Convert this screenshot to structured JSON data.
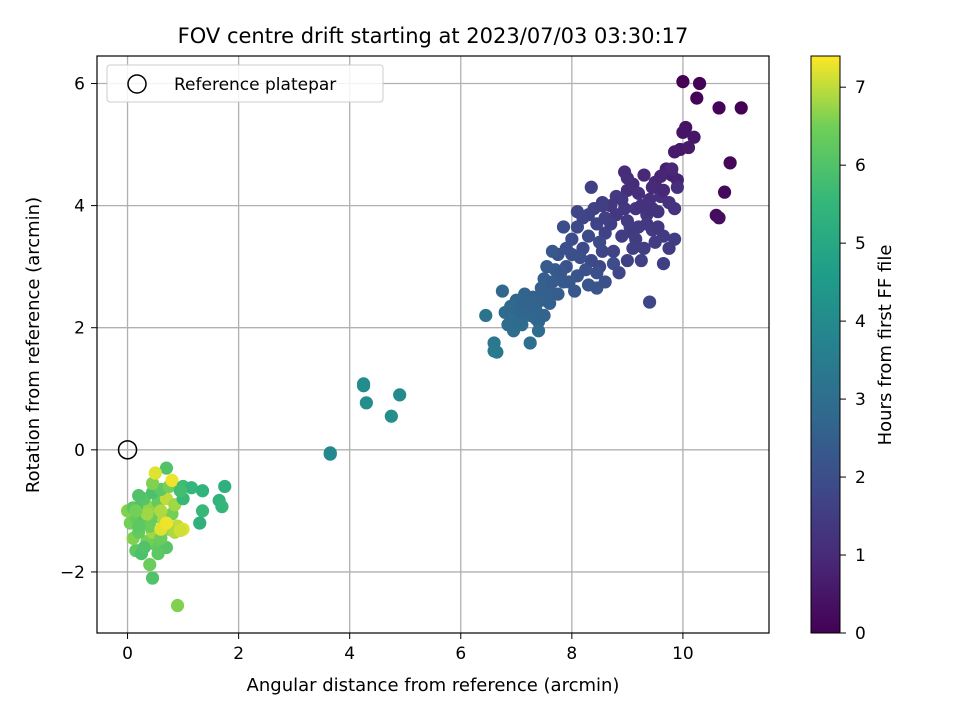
{
  "chart_data": {
    "type": "scatter",
    "title": "FOV centre drift starting at 2023/07/03 03:30:17",
    "xlabel": "Angular distance from reference (arcmin)",
    "ylabel": "Rotation from reference (arcmin)",
    "xlim": [
      -0.55,
      11.55
    ],
    "ylim": [
      -3.0,
      6.45
    ],
    "xticks": [
      0,
      2,
      4,
      6,
      8,
      10
    ],
    "yticks": [
      -2,
      0,
      2,
      4,
      6
    ],
    "grid": true,
    "legend": {
      "placement": "top-left",
      "entries": [
        "Reference platepar"
      ]
    },
    "reference_point": {
      "name": "Reference platepar",
      "x": 0,
      "y": 0
    },
    "colorbar": {
      "label": "Hours from first FF file",
      "range": [
        0,
        7.4
      ],
      "ticks": [
        0,
        1,
        2,
        3,
        4,
        5,
        6,
        7
      ],
      "colormap": "viridis"
    },
    "points": [
      [
        10.0,
        6.03,
        0.02
      ],
      [
        10.3,
        6.0,
        0.05
      ],
      [
        10.25,
        5.76,
        0.1
      ],
      [
        10.65,
        5.6,
        0.08
      ],
      [
        11.05,
        5.6,
        0.03
      ],
      [
        10.85,
        4.7,
        0.15
      ],
      [
        10.75,
        4.22,
        0.2
      ],
      [
        10.6,
        3.84,
        0.25
      ],
      [
        10.65,
        3.8,
        0.3
      ],
      [
        10.05,
        5.28,
        0.4
      ],
      [
        10.0,
        5.2,
        0.45
      ],
      [
        10.2,
        5.12,
        0.5
      ],
      [
        9.95,
        4.92,
        0.55
      ],
      [
        9.85,
        4.88,
        0.6
      ],
      [
        9.7,
        4.6,
        0.7
      ],
      [
        9.8,
        4.5,
        0.75
      ],
      [
        9.9,
        4.42,
        0.8
      ],
      [
        9.6,
        4.48,
        0.85
      ],
      [
        9.5,
        4.38,
        0.9
      ],
      [
        9.3,
        4.5,
        0.95
      ],
      [
        9.1,
        4.35,
        1.0
      ],
      [
        8.95,
        4.55,
        1.05
      ],
      [
        9.0,
        4.25,
        1.1
      ],
      [
        9.2,
        4.2,
        1.12
      ],
      [
        9.4,
        4.1,
        1.15
      ],
      [
        9.6,
        4.15,
        1.18
      ],
      [
        9.75,
        4.05,
        1.2
      ],
      [
        9.85,
        3.95,
        1.22
      ],
      [
        9.55,
        3.9,
        1.25
      ],
      [
        9.35,
        3.85,
        1.28
      ],
      [
        9.15,
        3.95,
        1.3
      ],
      [
        8.9,
        4.1,
        1.32
      ],
      [
        8.7,
        4.0,
        1.35
      ],
      [
        8.8,
        3.85,
        1.38
      ],
      [
        9.0,
        3.75,
        1.4
      ],
      [
        9.2,
        3.65,
        1.42
      ],
      [
        9.45,
        3.6,
        1.45
      ],
      [
        9.65,
        3.5,
        1.47
      ],
      [
        9.85,
        3.45,
        1.5
      ],
      [
        9.5,
        3.4,
        1.52
      ],
      [
        9.3,
        3.3,
        1.55
      ],
      [
        9.1,
        3.3,
        1.57
      ],
      [
        9.25,
        3.1,
        1.6
      ],
      [
        9.0,
        3.1,
        1.62
      ],
      [
        9.65,
        3.05,
        1.58
      ],
      [
        9.4,
        2.42,
        1.75
      ],
      [
        8.75,
        3.25,
        1.7
      ],
      [
        8.5,
        3.0,
        1.8
      ],
      [
        8.85,
        2.9,
        1.78
      ],
      [
        8.6,
        3.55,
        1.65
      ],
      [
        8.45,
        3.7,
        1.68
      ],
      [
        8.3,
        3.85,
        1.72
      ],
      [
        8.1,
        3.9,
        1.78
      ],
      [
        8.35,
        4.3,
        1.6
      ],
      [
        8.9,
        3.5,
        1.5
      ],
      [
        9.1,
        3.55,
        1.45
      ],
      [
        9.45,
        4.3,
        1.0
      ],
      [
        9.65,
        4.25,
        0.95
      ],
      [
        9.0,
        4.45,
        1.1
      ],
      [
        8.55,
        4.05,
        1.5
      ],
      [
        8.7,
        3.7,
        1.55
      ],
      [
        8.55,
        3.25,
        1.75
      ],
      [
        8.35,
        3.1,
        1.85
      ],
      [
        8.2,
        3.3,
        1.9
      ],
      [
        8.0,
        3.45,
        1.95
      ],
      [
        7.85,
        3.65,
        2.0
      ],
      [
        7.75,
        3.2,
        2.1
      ],
      [
        7.9,
        3.0,
        2.15
      ],
      [
        8.1,
        2.85,
        2.2
      ],
      [
        8.3,
        2.7,
        2.25
      ],
      [
        8.05,
        2.6,
        2.3
      ],
      [
        7.85,
        2.75,
        2.35
      ],
      [
        7.7,
        2.95,
        2.4
      ],
      [
        7.5,
        2.8,
        2.5
      ],
      [
        7.6,
        2.6,
        2.55
      ],
      [
        7.45,
        2.45,
        2.6
      ],
      [
        7.3,
        2.35,
        2.65
      ],
      [
        7.15,
        2.55,
        2.7
      ],
      [
        7.0,
        2.45,
        2.75
      ],
      [
        6.8,
        2.25,
        2.85
      ],
      [
        6.95,
        2.15,
        2.9
      ],
      [
        7.1,
        2.05,
        2.95
      ],
      [
        7.25,
        2.2,
        2.8
      ],
      [
        7.4,
        2.1,
        2.7
      ],
      [
        7.0,
        2.3,
        2.75
      ],
      [
        6.85,
        2.05,
        2.95
      ],
      [
        6.75,
        2.6,
        2.8
      ],
      [
        6.45,
        2.2,
        3.2
      ],
      [
        7.4,
        1.95,
        2.9
      ],
      [
        7.25,
        1.75,
        3.0
      ],
      [
        7.35,
        2.3,
        2.7
      ],
      [
        7.55,
        2.55,
        2.55
      ],
      [
        7.55,
        3.0,
        2.4
      ],
      [
        7.65,
        3.25,
        2.3
      ],
      [
        6.6,
        1.75,
        3.3
      ],
      [
        6.65,
        1.6,
        3.35
      ],
      [
        6.6,
        1.62,
        3.4
      ],
      [
        8.45,
        2.65,
        2.2
      ],
      [
        8.6,
        2.75,
        2.1
      ],
      [
        8.75,
        3.05,
        1.95
      ],
      [
        8.45,
        2.9,
        2.05
      ],
      [
        8.25,
        2.95,
        2.1
      ],
      [
        8.15,
        3.15,
        2.05
      ],
      [
        8.0,
        3.2,
        2.05
      ],
      [
        8.3,
        3.5,
        1.9
      ],
      [
        8.5,
        3.4,
        1.85
      ],
      [
        8.1,
        3.65,
        1.85
      ],
      [
        7.9,
        3.3,
        2.05
      ],
      [
        8.4,
        3.95,
        1.65
      ],
      [
        8.6,
        3.8,
        1.6
      ],
      [
        8.55,
        4.0,
        1.55
      ],
      [
        8.8,
        4.15,
        1.4
      ],
      [
        8.95,
        3.95,
        1.35
      ],
      [
        9.05,
        3.65,
        1.45
      ],
      [
        9.35,
        3.7,
        1.4
      ],
      [
        9.15,
        3.45,
        1.5
      ],
      [
        9.55,
        3.65,
        1.35
      ],
      [
        9.75,
        3.3,
        1.45
      ],
      [
        9.9,
        4.3,
        1.1
      ],
      [
        9.8,
        4.6,
        0.9
      ],
      [
        10.1,
        4.95,
        0.6
      ],
      [
        9.25,
        4.0,
        1.2
      ],
      [
        9.45,
        3.95,
        1.2
      ],
      [
        8.2,
        3.8,
        1.75
      ],
      [
        7.95,
        2.75,
        2.3
      ],
      [
        7.75,
        2.55,
        2.45
      ],
      [
        7.6,
        2.4,
        2.55
      ],
      [
        7.3,
        2.5,
        2.6
      ],
      [
        7.2,
        2.3,
        2.7
      ],
      [
        7.05,
        2.1,
        2.85
      ],
      [
        7.35,
        2.15,
        2.75
      ],
      [
        7.5,
        2.2,
        2.65
      ],
      [
        7.15,
        2.4,
        2.65
      ],
      [
        7.65,
        2.75,
        2.4
      ],
      [
        7.8,
        2.9,
        2.3
      ],
      [
        7.45,
        2.65,
        2.5
      ],
      [
        7.1,
        2.25,
        2.75
      ],
      [
        6.9,
        2.35,
        2.8
      ],
      [
        6.95,
        1.95,
        2.95
      ],
      [
        3.65,
        -0.07,
        3.9
      ],
      [
        3.65,
        -0.05,
        3.92
      ],
      [
        4.25,
        1.08,
        4.0
      ],
      [
        4.25,
        1.05,
        4.05
      ],
      [
        4.3,
        0.77,
        4.1
      ],
      [
        4.9,
        0.9,
        3.95
      ],
      [
        4.75,
        0.55,
        4.1
      ],
      [
        0.9,
        -2.55,
        6.6
      ],
      [
        0.45,
        -2.1,
        6.0
      ],
      [
        0.4,
        -1.88,
        6.4
      ],
      [
        0.15,
        -1.65,
        6.2
      ],
      [
        0.25,
        -1.7,
        5.9
      ],
      [
        0.5,
        -1.55,
        6.3
      ],
      [
        0.7,
        -1.6,
        6.1
      ],
      [
        0.35,
        -1.5,
        6.5
      ],
      [
        0.1,
        -1.45,
        6.6
      ],
      [
        0.2,
        -1.35,
        6.3
      ],
      [
        0.45,
        -1.35,
        6.8
      ],
      [
        0.6,
        -1.45,
        6.4
      ],
      [
        0.75,
        -1.3,
        6.7
      ],
      [
        0.9,
        -1.25,
        7.0
      ],
      [
        1.0,
        -1.3,
        7.2
      ],
      [
        0.05,
        -1.2,
        6.5
      ],
      [
        0.15,
        -1.1,
        6.3
      ],
      [
        0.3,
        -1.15,
        6.1
      ],
      [
        0.5,
        -1.1,
        6.4
      ],
      [
        0.65,
        -1.15,
        6.9
      ],
      [
        0.8,
        -1.05,
        6.5
      ],
      [
        0.0,
        -1.0,
        6.6
      ],
      [
        0.1,
        -0.95,
        6.2
      ],
      [
        0.25,
        -0.9,
        6.0
      ],
      [
        0.4,
        -0.95,
        6.7
      ],
      [
        0.55,
        -0.85,
        6.3
      ],
      [
        0.7,
        -0.8,
        7.0
      ],
      [
        0.85,
        -0.9,
        6.8
      ],
      [
        0.3,
        -0.8,
        6.1
      ],
      [
        0.2,
        -0.75,
        6.0
      ],
      [
        0.45,
        -0.7,
        5.9
      ],
      [
        0.6,
        -0.65,
        6.2
      ],
      [
        0.75,
        -0.6,
        6.5
      ],
      [
        0.45,
        -0.55,
        6.6
      ],
      [
        0.8,
        -0.5,
        7.3
      ],
      [
        0.7,
        -0.3,
        6.0
      ],
      [
        0.5,
        -0.38,
        7.2
      ],
      [
        1.0,
        -0.6,
        5.7
      ],
      [
        1.15,
        -0.62,
        5.5
      ],
      [
        1.35,
        -0.67,
        5.4
      ],
      [
        1.75,
        -0.6,
        5.3
      ],
      [
        1.65,
        -0.83,
        5.4
      ],
      [
        1.7,
        -0.93,
        5.5
      ],
      [
        1.35,
        -1.0,
        5.6
      ],
      [
        1.3,
        -1.2,
        5.3
      ],
      [
        1.0,
        -0.8,
        5.6
      ],
      [
        0.95,
        -0.67,
        5.8
      ],
      [
        0.6,
        -1.0,
        6.9
      ],
      [
        0.4,
        -1.25,
        6.4
      ],
      [
        0.2,
        -1.25,
        6.2
      ],
      [
        0.3,
        -1.6,
        6.0
      ],
      [
        0.55,
        -1.7,
        6.2
      ],
      [
        0.85,
        -1.35,
        6.9
      ],
      [
        0.95,
        -1.32,
        7.1
      ],
      [
        0.6,
        -1.3,
        7.2
      ],
      [
        0.35,
        -1.05,
        6.8
      ],
      [
        0.15,
        -1.0,
        6.5
      ],
      [
        0.7,
        -1.2,
        7.3
      ]
    ]
  }
}
